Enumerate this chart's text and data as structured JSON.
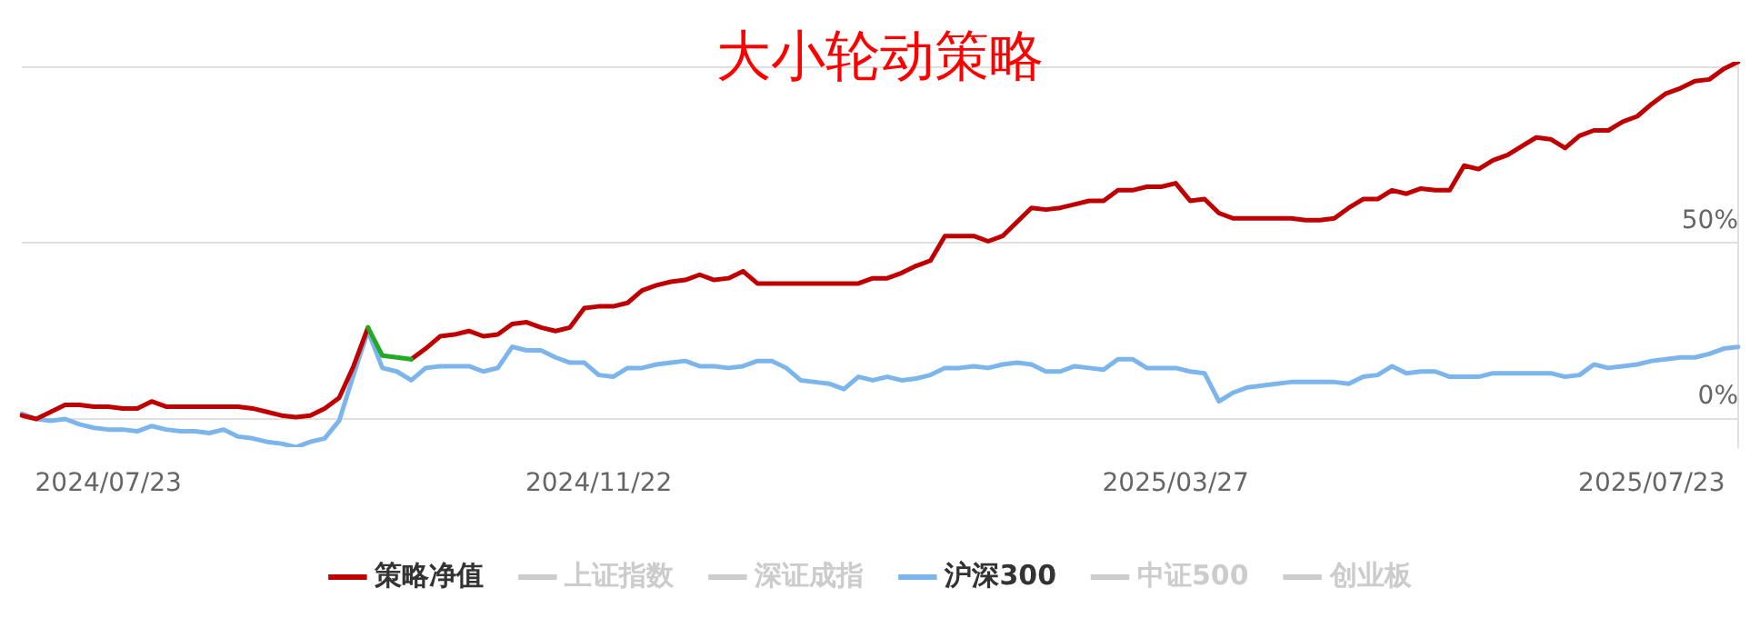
{
  "chart_data": {
    "type": "line",
    "title": "大小轮动策略",
    "categories": [
      null,
      null,
      null,
      null,
      null,
      null,
      "2024/07/23",
      null,
      null,
      null,
      null,
      null,
      null,
      null,
      null,
      null,
      null,
      null,
      null,
      null,
      null,
      null,
      null,
      null,
      null,
      null,
      null,
      null,
      null,
      null,
      null,
      null,
      null,
      null,
      null,
      null,
      null,
      null,
      null,
      null,
      "2024/11/22",
      null,
      null,
      null,
      null,
      null,
      null,
      null,
      null,
      null,
      null,
      null,
      null,
      null,
      null,
      null,
      null,
      null,
      null,
      null,
      null,
      null,
      null,
      null,
      null,
      null,
      null,
      null,
      null,
      null,
      null,
      null,
      null,
      null,
      null,
      null,
      null,
      null,
      null,
      null,
      "2025/03/27",
      null,
      null,
      null,
      null,
      null,
      null,
      null,
      null,
      null,
      null,
      null,
      null,
      null,
      null,
      null,
      null,
      null,
      null,
      null,
      null,
      null,
      null,
      null,
      null,
      null,
      null,
      null,
      null,
      null,
      null,
      null,
      null,
      "2025/07/23",
      null,
      null,
      null,
      null,
      null,
      null
    ],
    "series": [
      {
        "name": "策略净值",
        "color": "#c00000",
        "values": [
          1,
          0,
          2,
          4,
          4,
          3.5,
          3.5,
          3,
          3,
          5,
          3.5,
          3.5,
          3.5,
          3.5,
          3.5,
          3.5,
          3,
          2,
          1,
          0.5,
          1,
          3,
          6,
          15,
          26,
          null,
          null,
          17,
          20,
          23.5,
          24,
          25,
          23.5,
          24,
          27,
          27.5,
          26,
          25,
          26,
          31.5,
          32,
          32,
          33,
          36.5,
          38,
          39,
          39.5,
          41,
          39.5,
          40,
          42,
          38.5,
          38.5,
          38.5,
          38.5,
          38.5,
          38.5,
          38.5,
          38.5,
          40,
          40,
          41.5,
          43.5,
          45,
          52,
          52,
          52,
          50.5,
          52,
          56,
          60,
          59.5,
          60,
          61,
          62,
          62,
          65,
          65,
          66,
          66,
          67,
          62,
          62.5,
          58.5,
          57,
          57,
          57,
          57,
          57,
          56.5,
          56.5,
          57,
          60,
          62.5,
          62.5,
          65,
          64,
          65.5,
          65,
          65,
          72,
          71,
          73.5,
          75,
          77.5,
          80,
          79.5,
          77,
          80.5,
          82,
          82,
          84.5,
          86,
          89.5,
          92.5,
          94,
          96,
          96.5,
          99.5,
          101.5
        ]
      },
      {
        "color": "#22aa22",
        "values": [
          null,
          null,
          null,
          null,
          null,
          null,
          null,
          null,
          null,
          null,
          null,
          null,
          null,
          null,
          null,
          null,
          null,
          null,
          null,
          null,
          null,
          null,
          null,
          null,
          26,
          18,
          17.5,
          17,
          null,
          null,
          null,
          null,
          null,
          null,
          null,
          null,
          null,
          null,
          null,
          null,
          null,
          null,
          null,
          null,
          null,
          null,
          null,
          null,
          null,
          null,
          null,
          null,
          null,
          null,
          null,
          null,
          null,
          null,
          null,
          null,
          null,
          null,
          null,
          null,
          null,
          null,
          null,
          null,
          null,
          null,
          null,
          null,
          null,
          null,
          null,
          null,
          null,
          null,
          null,
          null,
          null,
          null,
          null,
          null,
          null,
          null,
          null,
          null,
          null,
          null,
          null,
          null,
          null,
          null,
          null,
          null,
          null,
          null,
          null,
          null,
          null,
          null,
          null,
          null,
          null,
          null,
          null,
          null,
          null,
          null,
          null,
          null,
          null,
          null,
          null,
          null,
          null,
          null,
          null,
          null
        ]
      },
      {
        "name": "上证指数",
        "color": "#cccccc",
        "values": [
          null,
          null,
          null,
          null,
          null,
          null,
          null,
          null,
          null,
          null,
          null,
          null,
          null,
          null,
          null,
          null,
          null,
          null,
          null,
          null,
          null,
          null,
          null,
          null,
          null,
          null,
          null,
          null,
          null,
          null,
          null,
          null,
          null,
          null,
          null,
          null,
          null,
          null,
          null,
          null,
          null,
          null,
          null,
          null,
          null,
          null,
          null,
          null,
          null,
          null,
          null,
          null,
          null,
          null,
          null,
          null,
          null,
          null,
          null,
          null,
          null,
          null,
          null,
          null,
          null,
          null,
          null,
          null,
          null,
          null,
          null,
          null,
          null,
          null,
          null,
          null,
          null,
          null,
          null,
          null,
          null,
          null,
          null,
          null,
          null,
          null,
          null,
          null,
          null,
          null,
          null,
          null,
          null,
          null,
          null,
          null,
          null,
          null,
          null,
          null,
          null,
          null,
          null,
          null,
          null,
          null,
          null,
          null,
          null,
          null,
          null,
          null,
          null,
          null,
          null,
          null,
          null,
          null,
          null,
          null
        ]
      },
      {
        "name": "深证成指",
        "color": "#cccccc",
        "values": [
          null,
          null,
          null,
          null,
          null,
          null,
          null,
          null,
          null,
          null,
          null,
          null,
          null,
          null,
          null,
          null,
          null,
          null,
          null,
          null,
          null,
          null,
          null,
          null,
          null,
          null,
          null,
          null,
          null,
          null,
          null,
          null,
          null,
          null,
          null,
          null,
          null,
          null,
          null,
          null,
          null,
          null,
          null,
          null,
          null,
          null,
          null,
          null,
          null,
          null,
          null,
          null,
          null,
          null,
          null,
          null,
          null,
          null,
          null,
          null,
          null,
          null,
          null,
          null,
          null,
          null,
          null,
          null,
          null,
          null,
          null,
          null,
          null,
          null,
          null,
          null,
          null,
          null,
          null,
          null,
          null,
          null,
          null,
          null,
          null,
          null,
          null,
          null,
          null,
          null,
          null,
          null,
          null,
          null,
          null,
          null,
          null,
          null,
          null,
          null,
          null,
          null,
          null,
          null,
          null,
          null,
          null,
          null,
          null,
          null,
          null,
          null,
          null,
          null,
          null,
          null,
          null,
          null,
          null,
          null
        ]
      },
      {
        "name": "沪深300",
        "color": "#7cb5ec",
        "values": [
          1.5,
          0,
          -0.5,
          0,
          -1.5,
          -2.5,
          -3,
          -3,
          -3.5,
          -2,
          -3,
          -3.5,
          -3.5,
          -4,
          -3,
          -5,
          -5.5,
          -6.5,
          -7,
          -8,
          -6.5,
          -5.5,
          -0.5,
          12.5,
          25,
          14.5,
          13.5,
          11,
          14.5,
          15,
          15,
          15,
          13.5,
          14.5,
          20.5,
          19.5,
          19.5,
          17.5,
          16,
          16,
          12.5,
          12,
          14.5,
          14.5,
          15.5,
          16,
          16.5,
          15,
          15,
          14.5,
          15,
          16.5,
          16.5,
          14.5,
          11,
          10.5,
          10,
          8.5,
          12,
          11,
          12,
          11,
          11.5,
          12.5,
          14.5,
          14.5,
          15,
          14.5,
          15.5,
          16,
          15.5,
          13.5,
          13.5,
          15,
          14.5,
          14,
          17,
          17,
          14.5,
          14.5,
          14.5,
          13.5,
          13,
          5,
          7.5,
          9,
          9.5,
          10,
          10.5,
          10.5,
          10.5,
          10.5,
          10,
          12,
          12.5,
          15,
          13,
          13.5,
          13.5,
          12,
          12,
          12,
          13,
          13,
          13,
          13,
          13,
          12,
          12.5,
          15.5,
          14.5,
          15,
          15.5,
          16.5,
          17,
          17.5,
          17.5,
          18.5,
          20,
          20.5
        ]
      },
      {
        "name": "中证500",
        "color": "#cccccc",
        "values": [
          null,
          null,
          null,
          null,
          null,
          null,
          null,
          null,
          null,
          null,
          null,
          null,
          null,
          null,
          null,
          null,
          null,
          null,
          null,
          null,
          null,
          null,
          null,
          null,
          null,
          null,
          null,
          null,
          null,
          null,
          null,
          null,
          null,
          null,
          null,
          null,
          null,
          null,
          null,
          null,
          null,
          null,
          null,
          null,
          null,
          null,
          null,
          null,
          null,
          null,
          null,
          null,
          null,
          null,
          null,
          null,
          null,
          null,
          null,
          null,
          null,
          null,
          null,
          null,
          null,
          null,
          null,
          null,
          null,
          null,
          null,
          null,
          null,
          null,
          null,
          null,
          null,
          null,
          null,
          null,
          null,
          null,
          null,
          null,
          null,
          null,
          null,
          null,
          null,
          null,
          null,
          null,
          null,
          null,
          null,
          null,
          null,
          null,
          null,
          null,
          null,
          null,
          null,
          null,
          null,
          null,
          null,
          null,
          null,
          null,
          null,
          null,
          null,
          null,
          null,
          null,
          null,
          null,
          null,
          null
        ]
      },
      {
        "name": "创业板",
        "color": "#cccccc",
        "values": [
          null,
          null,
          null,
          null,
          null,
          null,
          null,
          null,
          null,
          null,
          null,
          null,
          null,
          null,
          null,
          null,
          null,
          null,
          null,
          null,
          null,
          null,
          null,
          null,
          null,
          null,
          null,
          null,
          null,
          null,
          null,
          null,
          null,
          null,
          null,
          null,
          null,
          null,
          null,
          null,
          null,
          null,
          null,
          null,
          null,
          null,
          null,
          null,
          null,
          null,
          null,
          null,
          null,
          null,
          null,
          null,
          null,
          null,
          null,
          null,
          null,
          null,
          null,
          null,
          null,
          null,
          null,
          null,
          null,
          null,
          null,
          null,
          null,
          null,
          null,
          null,
          null,
          null,
          null,
          null,
          null,
          null,
          null,
          null,
          null,
          null,
          null,
          null,
          null,
          null,
          null,
          null,
          null,
          null,
          null,
          null,
          null,
          null,
          null,
          null,
          null,
          null,
          null,
          null,
          null,
          null,
          null,
          null,
          null,
          null,
          null,
          null,
          null,
          null,
          null,
          null,
          null,
          null,
          null,
          null
        ]
      }
    ],
    "ylim": [
      -8,
      101.5
    ],
    "yticks": [
      {
        "value": 0,
        "label": "0%"
      },
      {
        "value": 50,
        "label": "50%"
      },
      {
        "value": 100,
        "label": null
      }
    ],
    "grid": "y",
    "legend": "bottom",
    "marker": "none",
    "line_style": "solid"
  }
}
